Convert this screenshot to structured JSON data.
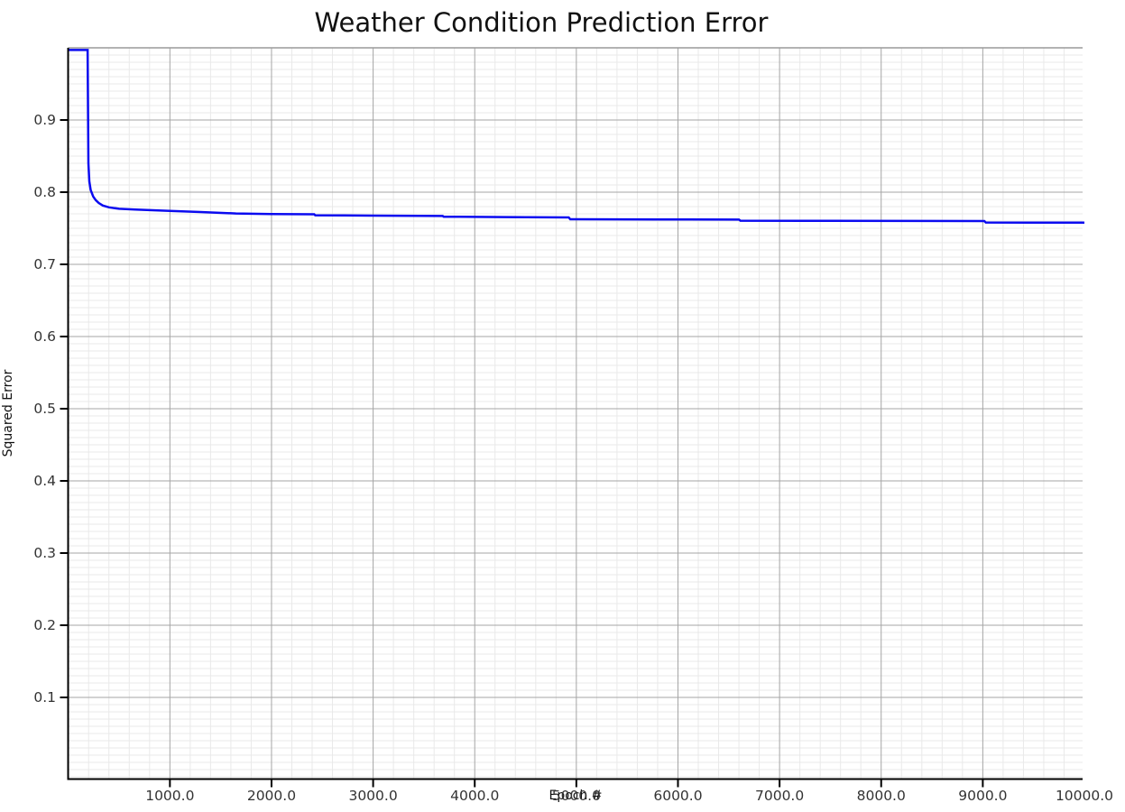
{
  "chart_data": {
    "type": "line",
    "title": "Weather Condition Prediction Error",
    "xlabel": "Epoch #",
    "ylabel": "Squared Error",
    "xlim": [
      0,
      10000
    ],
    "ylim": [
      -0.013,
      1.0
    ],
    "grid": {
      "enabled": true,
      "minor_x_step": 200,
      "minor_y_step": 0.01,
      "major_x_step": 1000,
      "major_y_step": 0.1,
      "minor_color": "#e9e9e9",
      "major_color": "#a5a5a5"
    },
    "legend_position": "none",
    "x_ticks": [
      1000,
      2000,
      3000,
      4000,
      5000,
      6000,
      7000,
      8000,
      9000,
      10000
    ],
    "x_tick_labels": [
      "1000.0",
      "2000.0",
      "3000.0",
      "4000.0",
      "5000.0",
      "6000.0",
      "7000.0",
      "8000.0",
      "9000.0",
      "10000.0"
    ],
    "y_ticks": [
      0.1,
      0.2,
      0.3,
      0.4,
      0.5,
      0.6,
      0.7,
      0.8,
      0.9
    ],
    "y_tick_labels": [
      "0.1",
      "0.2",
      "0.3",
      "0.4",
      "0.5",
      "0.6",
      "0.7",
      "0.8",
      "0.9"
    ],
    "series": [
      {
        "name": "Squared Error",
        "color": "#0b0bf0",
        "x": [
          0,
          190,
          198,
          207,
          220,
          245,
          270,
          300,
          340,
          400,
          500,
          660,
          1000,
          1300,
          1650,
          2000,
          2420,
          2430,
          3000,
          3685,
          3695,
          4300,
          4925,
          4940,
          5800,
          6600,
          6615,
          7500,
          9015,
          9030,
          10000
        ],
        "y": [
          0.997,
          0.997,
          0.84,
          0.815,
          0.803,
          0.794,
          0.789,
          0.785,
          0.7815,
          0.779,
          0.777,
          0.776,
          0.774,
          0.7725,
          0.7705,
          0.7697,
          0.7694,
          0.768,
          0.7675,
          0.767,
          0.766,
          0.7655,
          0.765,
          0.7625,
          0.7622,
          0.762,
          0.7605,
          0.7603,
          0.76,
          0.758,
          0.7578
        ]
      }
    ],
    "colors": {
      "spine": "#000000",
      "plot_border_top": "#9a9a9a",
      "tick_mark": "#000000",
      "tick_label": "#333333",
      "title": "#111111",
      "background": "#ffffff"
    }
  }
}
